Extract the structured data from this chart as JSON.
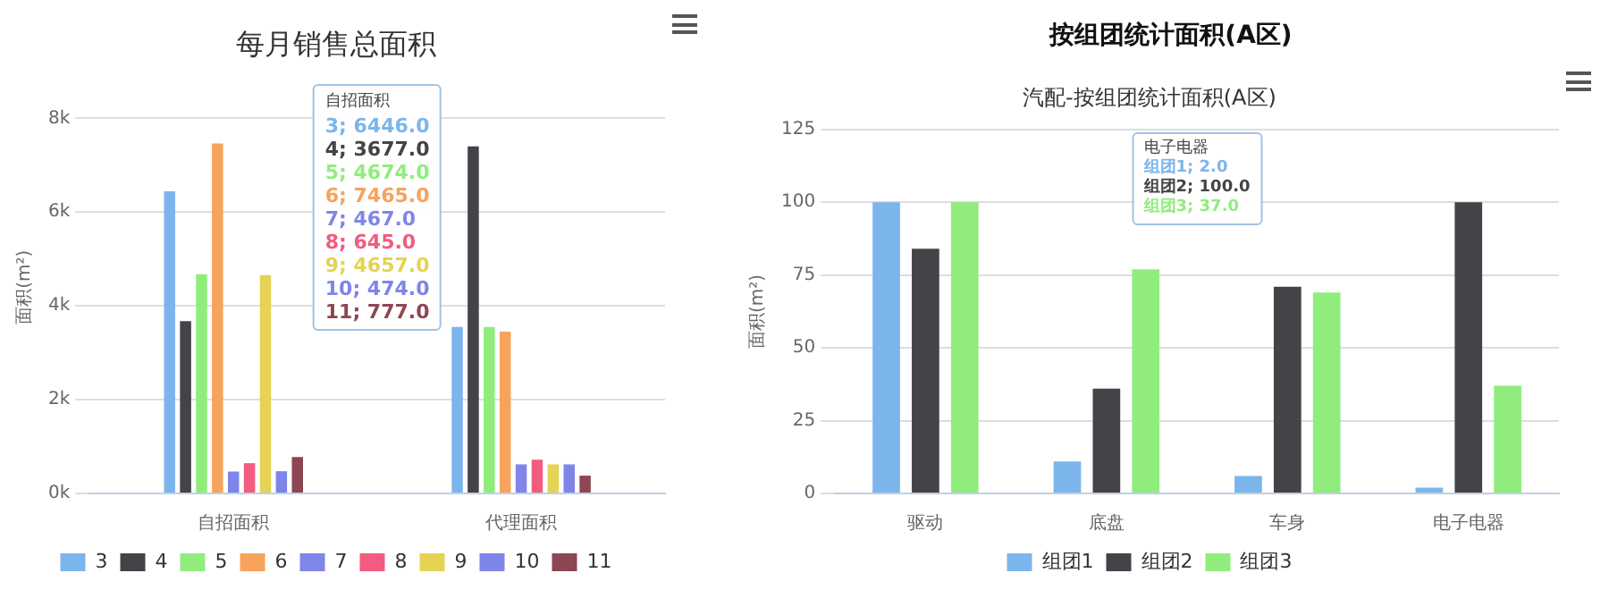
{
  "chart_data": [
    {
      "type": "bar",
      "title": "每月销售总面积",
      "ylabel": "面积(m²)",
      "categories": [
        "自招面积",
        "代理面积"
      ],
      "series": [
        {
          "name": "3",
          "color": "#7cb5ec",
          "values": [
            6446,
            3550
          ]
        },
        {
          "name": "4",
          "color": "#434348",
          "values": [
            3677,
            7400
          ]
        },
        {
          "name": "5",
          "color": "#90ed7d",
          "values": [
            4674,
            3550
          ]
        },
        {
          "name": "6",
          "color": "#f7a35c",
          "values": [
            7465,
            3450
          ]
        },
        {
          "name": "7",
          "color": "#8085e9",
          "values": [
            467,
            620
          ]
        },
        {
          "name": "8",
          "color": "#f15c80",
          "values": [
            645,
            720
          ]
        },
        {
          "name": "9",
          "color": "#e4d354",
          "values": [
            4657,
            620
          ]
        },
        {
          "name": "10",
          "color": "#7f84e8",
          "values": [
            474,
            620
          ]
        },
        {
          "name": "11",
          "color": "#8d4653",
          "values": [
            777,
            380
          ]
        }
      ],
      "ylim": [
        0,
        8800
      ],
      "yticks": [
        {
          "value": 0,
          "label": "0k"
        },
        {
          "value": 2000,
          "label": "2k"
        },
        {
          "value": 4000,
          "label": "4k"
        },
        {
          "value": 6000,
          "label": "6k"
        },
        {
          "value": 8000,
          "label": "8k"
        }
      ],
      "grid": "y",
      "legend": "bottom",
      "annotations": [
        "自招面积",
        "3; 6446.0",
        "4; 3677.0",
        "5; 4674.0",
        "6; 7465.0",
        "7; 467.0",
        "8; 645.0",
        "9; 4657.0",
        "10; 474.0",
        "11; 777.0"
      ]
    },
    {
      "type": "bar",
      "title": "按组团统计面积(A区)",
      "subtitle": "汽配-按组团统计面积(A区)",
      "ylabel": "面积(m²)",
      "categories": [
        "驱动",
        "底盘",
        "车身",
        "电子电器"
      ],
      "series": [
        {
          "name": "组团1",
          "color": "#7cb5ec",
          "values": [
            100,
            11,
            6,
            2
          ]
        },
        {
          "name": "组团2",
          "color": "#434348",
          "values": [
            84,
            36,
            71,
            100
          ]
        },
        {
          "name": "组团3",
          "color": "#90ed7d",
          "values": [
            100,
            77,
            69,
            37
          ]
        }
      ],
      "ylim": [
        0,
        125
      ],
      "yticks": [
        0,
        25,
        50,
        75,
        100,
        125
      ],
      "grid": "y",
      "legend": "bottom",
      "annotations": [
        "电子电器",
        "组团1; 2.0",
        "组团2; 100.0",
        "组团3; 37.0"
      ]
    }
  ]
}
